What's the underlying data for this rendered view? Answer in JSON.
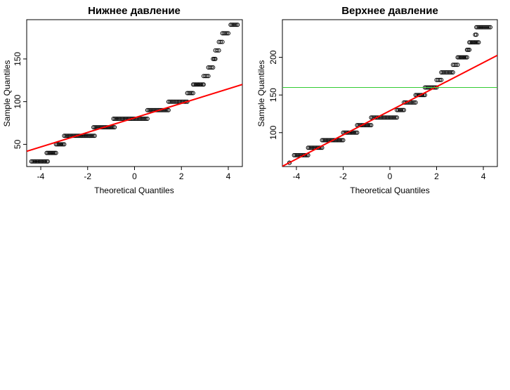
{
  "chart_data": [
    {
      "type": "scatter",
      "title": "Нижнее давление",
      "xlabel": "Theoretical Quantiles",
      "ylabel": "Sample Quantiles",
      "xlim": [
        -4.6,
        4.6
      ],
      "ylim": [
        24,
        196
      ],
      "xticks": [
        -4,
        -2,
        0,
        2,
        4
      ],
      "yticks": [
        50,
        100,
        150
      ],
      "grid": false,
      "steps": [
        {
          "y": 30,
          "x": [
            -4.4,
            -3.7
          ]
        },
        {
          "y": 40,
          "x": [
            -3.75,
            -3.35
          ]
        },
        {
          "y": 50,
          "x": [
            -3.35,
            -3.0
          ]
        },
        {
          "y": 60,
          "x": [
            -3.0,
            -1.7
          ]
        },
        {
          "y": 70,
          "x": [
            -1.75,
            -0.85
          ]
        },
        {
          "y": 80,
          "x": [
            -0.9,
            0.55
          ]
        },
        {
          "y": 90,
          "x": [
            0.55,
            1.45
          ]
        },
        {
          "y": 100,
          "x": [
            1.45,
            2.25
          ]
        },
        {
          "y": 110,
          "x": [
            2.25,
            2.5
          ]
        },
        {
          "y": 120,
          "x": [
            2.5,
            2.95
          ]
        },
        {
          "y": 130,
          "x": [
            2.95,
            3.15
          ]
        },
        {
          "y": 140,
          "x": [
            3.15,
            3.35
          ]
        },
        {
          "y": 150,
          "x": [
            3.35,
            3.45
          ]
        },
        {
          "y": 160,
          "x": [
            3.45,
            3.6
          ]
        },
        {
          "y": 170,
          "x": [
            3.6,
            3.75
          ]
        },
        {
          "y": 180,
          "x": [
            3.75,
            4.0
          ]
        },
        {
          "y": 190,
          "x": [
            4.1,
            4.4
          ]
        }
      ],
      "lines": [
        {
          "kind": "qqline",
          "color": "#ff0000",
          "intercept": 81,
          "slope": 8.5
        }
      ]
    },
    {
      "type": "scatter",
      "title": "Верхнее давление",
      "xlabel": "Theoretical Quantiles",
      "ylabel": "Sample Quantiles",
      "xlim": [
        -4.6,
        4.6
      ],
      "ylim": [
        55,
        250
      ],
      "xticks": [
        -4,
        -2,
        0,
        2,
        4
      ],
      "yticks": [
        100,
        150,
        200
      ],
      "grid": false,
      "steps": [
        {
          "y": 60,
          "x": [
            -4.3,
            -4.3
          ]
        },
        {
          "y": 70,
          "x": [
            -4.1,
            -3.5
          ]
        },
        {
          "y": 80,
          "x": [
            -3.5,
            -2.9
          ]
        },
        {
          "y": 90,
          "x": [
            -2.9,
            -2.0
          ]
        },
        {
          "y": 100,
          "x": [
            -2.0,
            -1.4
          ]
        },
        {
          "y": 110,
          "x": [
            -1.4,
            -0.8
          ]
        },
        {
          "y": 120,
          "x": [
            -0.8,
            0.3
          ]
        },
        {
          "y": 130,
          "x": [
            0.3,
            0.6
          ]
        },
        {
          "y": 140,
          "x": [
            0.6,
            1.1
          ]
        },
        {
          "y": 150,
          "x": [
            1.1,
            1.5
          ]
        },
        {
          "y": 160,
          "x": [
            1.5,
            2.0
          ]
        },
        {
          "y": 170,
          "x": [
            2.0,
            2.2
          ]
        },
        {
          "y": 180,
          "x": [
            2.2,
            2.7
          ]
        },
        {
          "y": 190,
          "x": [
            2.7,
            2.9
          ]
        },
        {
          "y": 200,
          "x": [
            2.9,
            3.3
          ]
        },
        {
          "y": 210,
          "x": [
            3.3,
            3.4
          ]
        },
        {
          "y": 220,
          "x": [
            3.4,
            3.8
          ]
        },
        {
          "y": 230,
          "x": [
            3.65,
            3.7
          ]
        },
        {
          "y": 240,
          "x": [
            3.7,
            4.3
          ]
        }
      ],
      "lines": [
        {
          "kind": "qqline",
          "color": "#ff0000",
          "intercept": 129,
          "slope": 16
        },
        {
          "kind": "hline",
          "color": "#33cc33",
          "y": 160
        }
      ]
    }
  ]
}
